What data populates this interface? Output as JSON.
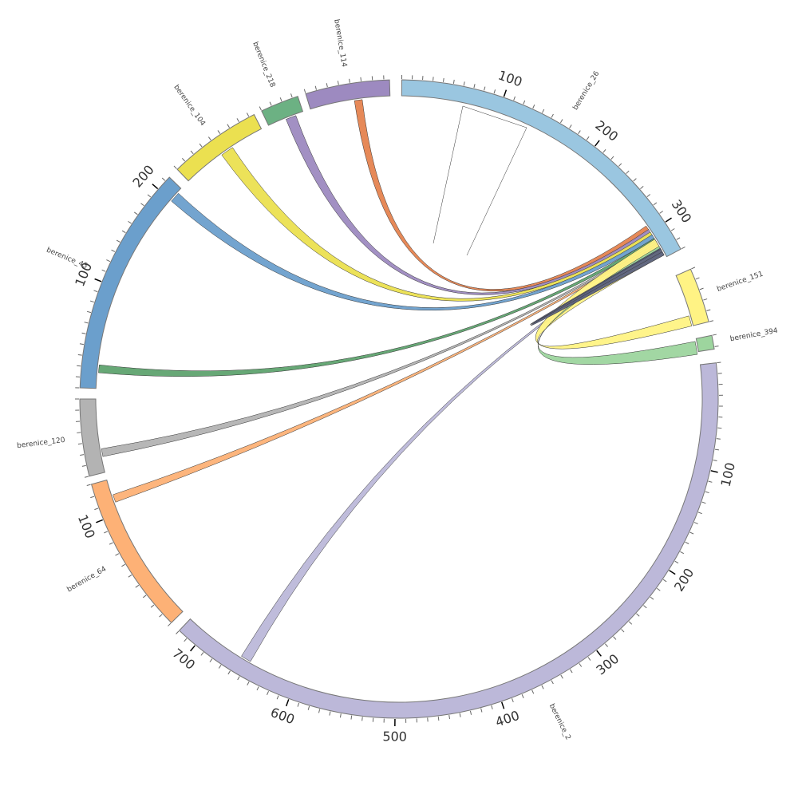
{
  "chart_data": {
    "type": "chord",
    "sectors": [
      {
        "name": "berenice_26",
        "color": "#9ac6e0",
        "size": 330,
        "major_ticks": [
          "100",
          "200",
          "300"
        ]
      },
      {
        "name": "berenice_151",
        "color": "#fff384",
        "size": 50,
        "major_ticks": []
      },
      {
        "name": "berenice_394",
        "color": "#9dd59e",
        "size": 12,
        "major_ticks": []
      },
      {
        "name": "berenice_2",
        "color": "#bcb8d9",
        "size": 720,
        "major_ticks": [
          "100",
          "200",
          "300",
          "400",
          "500",
          "600",
          "700"
        ]
      },
      {
        "name": "berenice_64",
        "color": "#fdb176",
        "size": 130,
        "major_ticks": [
          "100"
        ]
      },
      {
        "name": "berenice_120",
        "color": "#b3b3b3",
        "size": 70,
        "major_ticks": []
      },
      {
        "name": "berenice_45",
        "color": "#6b9fcc",
        "size": 215,
        "major_ticks": [
          "100",
          "200"
        ]
      },
      {
        "name": "berenice_104",
        "color": "#ebe050",
        "size": 85,
        "major_ticks": []
      },
      {
        "name": "berenice_218",
        "color": "#6cb183",
        "size": 35,
        "major_ticks": []
      },
      {
        "name": "berenice_114",
        "color": "#9d8ac0",
        "size": 75,
        "major_ticks": []
      }
    ],
    "links": [
      {
        "from": "berenice_114",
        "to": "berenice_26",
        "color": "#e5834f"
      },
      {
        "from": "berenice_218",
        "to": "berenice_26",
        "color": "#9d8ac0"
      },
      {
        "from": "berenice_104",
        "to": "berenice_26",
        "color": "#ebe050"
      },
      {
        "from": "berenice_45",
        "to": "berenice_26",
        "color": "#6b9fcc"
      },
      {
        "from": "berenice_45",
        "to": "berenice_26",
        "color": "#5fa36f"
      },
      {
        "from": "berenice_120",
        "to": "berenice_26",
        "color": "#b3b3b3"
      },
      {
        "from": "berenice_64",
        "to": "berenice_26",
        "color": "#fdb176"
      },
      {
        "from": "berenice_2",
        "to": "berenice_26",
        "color": "#bcb8d9"
      },
      {
        "from": "berenice_151",
        "to": "berenice_26",
        "color": "#fff384"
      },
      {
        "from": "berenice_394",
        "to": "berenice_26",
        "color": "#9dd59e"
      },
      {
        "from": "berenice_26",
        "to": "berenice_26",
        "color": "#5a607f"
      },
      {
        "from": "berenice_26",
        "to": "berenice_26",
        "color": "#ffffff"
      }
    ]
  }
}
